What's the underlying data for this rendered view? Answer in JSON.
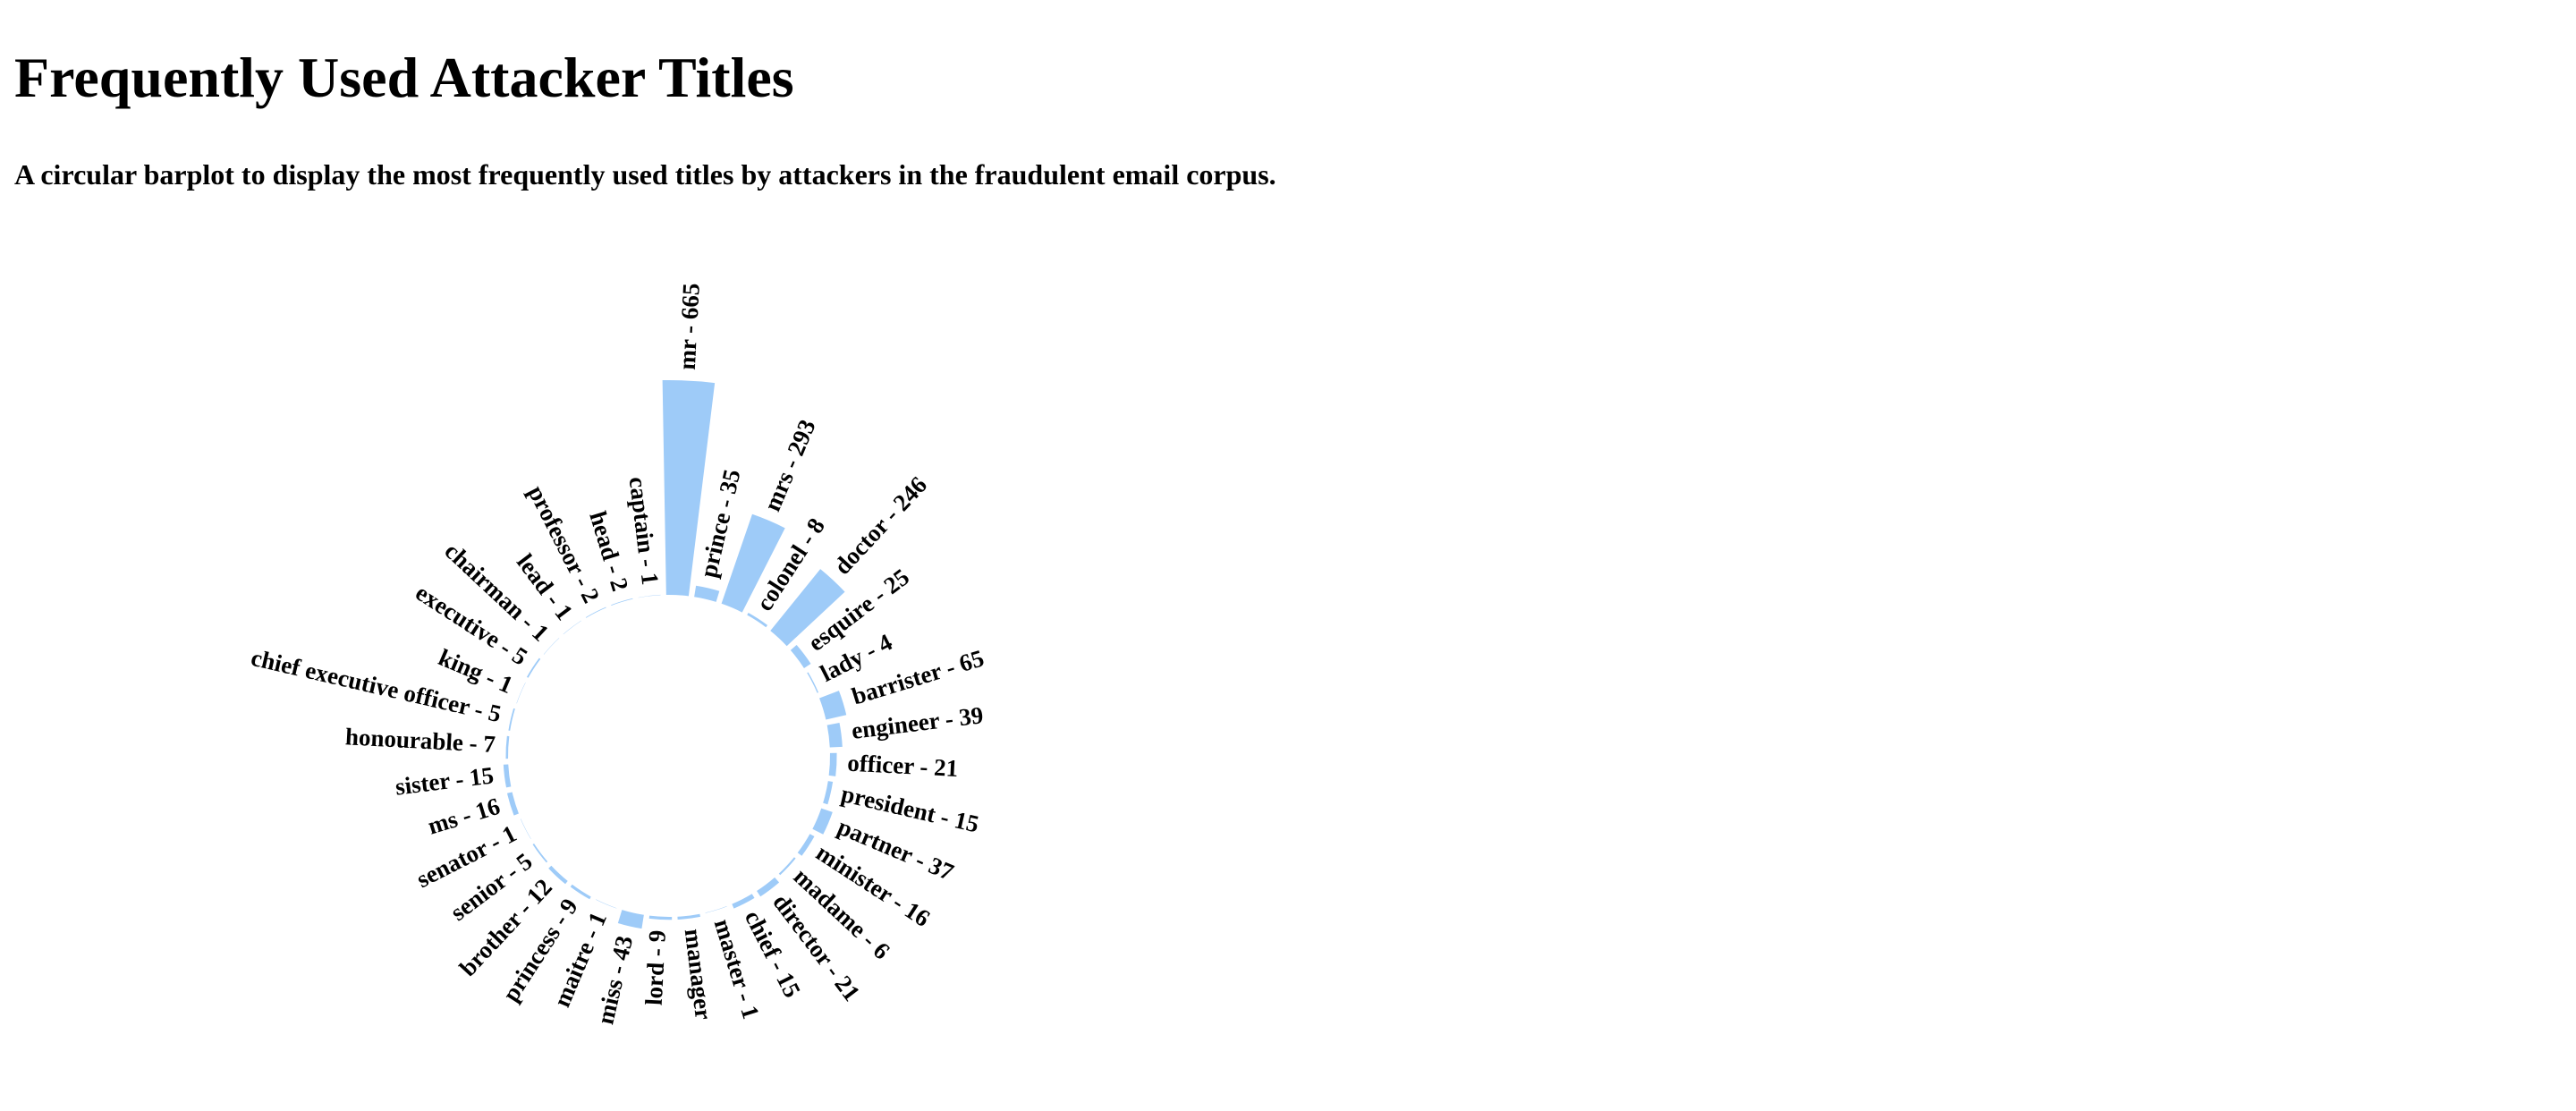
{
  "title": "Frequently Used Attacker Titles",
  "subtitle": "A circular barplot to display the most frequently used titles by attackers in the fraudulent email corpus.",
  "chart_data": {
    "type": "bar",
    "layout": "circular",
    "bar_color": "#9ecbf8",
    "label_separator": " - ",
    "categories": [
      "mr",
      "prince",
      "mrs",
      "colonel",
      "doctor",
      "esquire",
      "lady",
      "barrister",
      "engineer",
      "officer",
      "president",
      "partner",
      "minister",
      "madame",
      "director",
      "chief",
      "master",
      "manager",
      "lord",
      "miss",
      "maitre",
      "princess",
      "brother",
      "senior",
      "senator",
      "ms",
      "sister",
      "honourable",
      "chief executive officer",
      "king",
      "executive",
      "chairman",
      "lead",
      "professor",
      "head",
      "captain"
    ],
    "values": [
      665,
      35,
      293,
      8,
      246,
      25,
      4,
      65,
      39,
      21,
      15,
      37,
      16,
      6,
      21,
      15,
      1,
      9,
      9,
      43,
      1,
      9,
      12,
      5,
      1,
      16,
      15,
      7,
      5,
      1,
      5,
      1,
      1,
      2,
      2,
      1
    ],
    "labels": [
      "mr - 665",
      "prince - 35",
      "mrs - 293",
      "colonel - 8",
      "doctor - 246",
      "esquire - 25",
      "lady - 4",
      "barrister - 65",
      "engineer - 39",
      "officer - 21",
      "president - 15",
      "partner - 37",
      "minister - 16",
      "madame - 6",
      "director - 21",
      "chief - 15",
      "master - 1",
      "manager",
      "lord - 9",
      "miss - 43",
      "maitre - 1",
      "princess - 9",
      "brother - 12",
      "senior - 5",
      "senator - 1",
      "ms - 16",
      "sister - 15",
      "honourable - 7",
      "chief executive officer - 5",
      "king - 1",
      "executive - 5",
      "chairman - 1",
      "lead - 1",
      "professor - 2",
      "head - 2",
      "captain - 1"
    ]
  }
}
